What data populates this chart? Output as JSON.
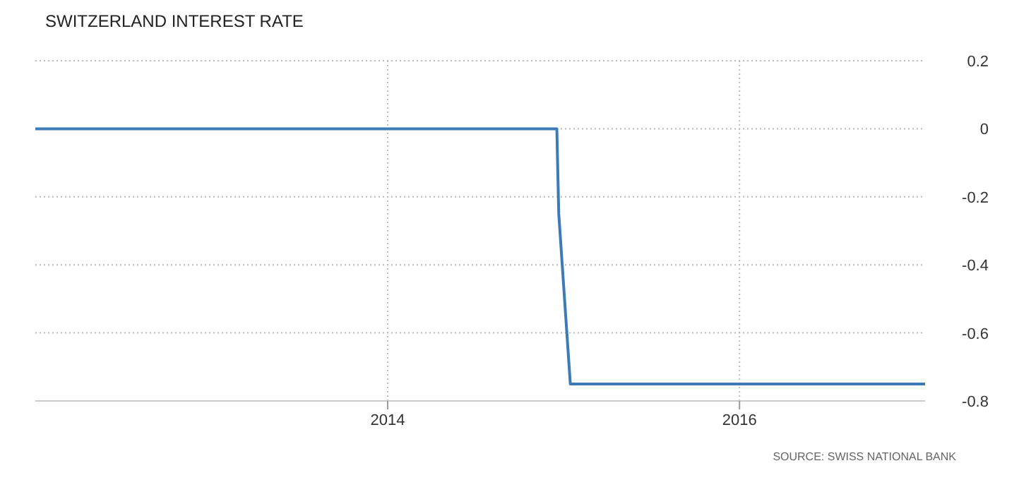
{
  "chart_data": {
    "type": "line",
    "title": "SWITZERLAND INTEREST RATE",
    "x": [
      "2012-01-01",
      "2014-12-18",
      "2014-12-22",
      "2015-01-15",
      "2017-01-20"
    ],
    "series": [
      {
        "color": "#3d7ab8",
        "values": [
          0,
          0,
          -0.25,
          -0.75,
          -0.75
        ]
      }
    ],
    "xlim": [
      "2012-01-01",
      "2017-01-20"
    ],
    "xticks": [
      {
        "value": "2014-01-01",
        "label": "2014"
      },
      {
        "value": "2016-01-01",
        "label": "2016"
      }
    ],
    "ylim": [
      -0.8,
      0.2
    ],
    "yticks": [
      0.2,
      0,
      -0.2,
      -0.4,
      -0.6,
      -0.8
    ],
    "grid": true,
    "annotations": [
      "SOURCE: SWISS NATIONAL BANK"
    ]
  }
}
